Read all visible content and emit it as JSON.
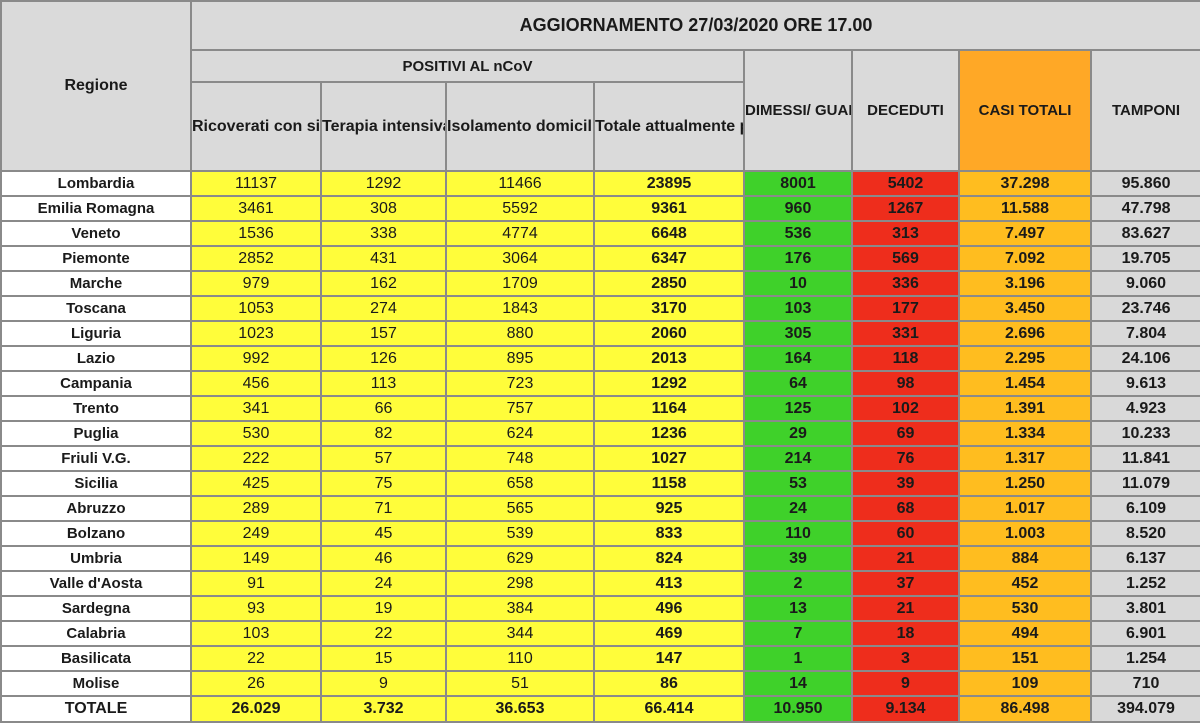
{
  "header": {
    "title": "AGGIORNAMENTO 27/03/2020 ORE 17.00",
    "regione": "Regione",
    "positivi_group": "POSITIVI AL nCoV",
    "ricoverati": "Ricoverati con sintomi",
    "terapia": "Terapia intensiva",
    "isolamento": "Isolamento domiciliare",
    "totale_positivi": "Totale attualmente positivi",
    "dimessi": "DIMESSI/ GUARITI",
    "deceduti": "DECEDUTI",
    "casi_totali": "CASI TOTALI",
    "tamponi": "TAMPONI"
  },
  "colors": {
    "yellow": "#fffd3a",
    "green": "#3fd12a",
    "red": "#ee2d1c",
    "orange": "#ffbd1f",
    "header_orange": "#ffa826",
    "grey": "#d9d9d9"
  },
  "rows": [
    {
      "regione": "Lombardia",
      "ricoverati": "11137",
      "terapia": "1292",
      "isolamento": "11466",
      "totale": "23895",
      "dimessi": "8001",
      "deceduti": "5402",
      "casi": "37.298",
      "tamponi": "95.860"
    },
    {
      "regione": "Emilia Romagna",
      "ricoverati": "3461",
      "terapia": "308",
      "isolamento": "5592",
      "totale": "9361",
      "dimessi": "960",
      "deceduti": "1267",
      "casi": "11.588",
      "tamponi": "47.798"
    },
    {
      "regione": "Veneto",
      "ricoverati": "1536",
      "terapia": "338",
      "isolamento": "4774",
      "totale": "6648",
      "dimessi": "536",
      "deceduti": "313",
      "casi": "7.497",
      "tamponi": "83.627"
    },
    {
      "regione": "Piemonte",
      "ricoverati": "2852",
      "terapia": "431",
      "isolamento": "3064",
      "totale": "6347",
      "dimessi": "176",
      "deceduti": "569",
      "casi": "7.092",
      "tamponi": "19.705"
    },
    {
      "regione": "Marche",
      "ricoverati": "979",
      "terapia": "162",
      "isolamento": "1709",
      "totale": "2850",
      "dimessi": "10",
      "deceduti": "336",
      "casi": "3.196",
      "tamponi": "9.060"
    },
    {
      "regione": "Toscana",
      "ricoverati": "1053",
      "terapia": "274",
      "isolamento": "1843",
      "totale": "3170",
      "dimessi": "103",
      "deceduti": "177",
      "casi": "3.450",
      "tamponi": "23.746"
    },
    {
      "regione": "Liguria",
      "ricoverati": "1023",
      "terapia": "157",
      "isolamento": "880",
      "totale": "2060",
      "dimessi": "305",
      "deceduti": "331",
      "casi": "2.696",
      "tamponi": "7.804"
    },
    {
      "regione": "Lazio",
      "ricoverati": "992",
      "terapia": "126",
      "isolamento": "895",
      "totale": "2013",
      "dimessi": "164",
      "deceduti": "118",
      "casi": "2.295",
      "tamponi": "24.106"
    },
    {
      "regione": "Campania",
      "ricoverati": "456",
      "terapia": "113",
      "isolamento": "723",
      "totale": "1292",
      "dimessi": "64",
      "deceduti": "98",
      "casi": "1.454",
      "tamponi": "9.613"
    },
    {
      "regione": "Trento",
      "ricoverati": "341",
      "terapia": "66",
      "isolamento": "757",
      "totale": "1164",
      "dimessi": "125",
      "deceduti": "102",
      "casi": "1.391",
      "tamponi": "4.923"
    },
    {
      "regione": "Puglia",
      "ricoverati": "530",
      "terapia": "82",
      "isolamento": "624",
      "totale": "1236",
      "dimessi": "29",
      "deceduti": "69",
      "casi": "1.334",
      "tamponi": "10.233"
    },
    {
      "regione": "Friuli V.G.",
      "ricoverati": "222",
      "terapia": "57",
      "isolamento": "748",
      "totale": "1027",
      "dimessi": "214",
      "deceduti": "76",
      "casi": "1.317",
      "tamponi": "11.841"
    },
    {
      "regione": "Sicilia",
      "ricoverati": "425",
      "terapia": "75",
      "isolamento": "658",
      "totale": "1158",
      "dimessi": "53",
      "deceduti": "39",
      "casi": "1.250",
      "tamponi": "11.079"
    },
    {
      "regione": "Abruzzo",
      "ricoverati": "289",
      "terapia": "71",
      "isolamento": "565",
      "totale": "925",
      "dimessi": "24",
      "deceduti": "68",
      "casi": "1.017",
      "tamponi": "6.109"
    },
    {
      "regione": "Bolzano",
      "ricoverati": "249",
      "terapia": "45",
      "isolamento": "539",
      "totale": "833",
      "dimessi": "110",
      "deceduti": "60",
      "casi": "1.003",
      "tamponi": "8.520"
    },
    {
      "regione": "Umbria",
      "ricoverati": "149",
      "terapia": "46",
      "isolamento": "629",
      "totale": "824",
      "dimessi": "39",
      "deceduti": "21",
      "casi": "884",
      "tamponi": "6.137"
    },
    {
      "regione": "Valle d'Aosta",
      "ricoverati": "91",
      "terapia": "24",
      "isolamento": "298",
      "totale": "413",
      "dimessi": "2",
      "deceduti": "37",
      "casi": "452",
      "tamponi": "1.252"
    },
    {
      "regione": "Sardegna",
      "ricoverati": "93",
      "terapia": "19",
      "isolamento": "384",
      "totale": "496",
      "dimessi": "13",
      "deceduti": "21",
      "casi": "530",
      "tamponi": "3.801"
    },
    {
      "regione": "Calabria",
      "ricoverati": "103",
      "terapia": "22",
      "isolamento": "344",
      "totale": "469",
      "dimessi": "7",
      "deceduti": "18",
      "casi": "494",
      "tamponi": "6.901"
    },
    {
      "regione": "Basilicata",
      "ricoverati": "22",
      "terapia": "15",
      "isolamento": "110",
      "totale": "147",
      "dimessi": "1",
      "deceduti": "3",
      "casi": "151",
      "tamponi": "1.254"
    },
    {
      "regione": "Molise",
      "ricoverati": "26",
      "terapia": "9",
      "isolamento": "51",
      "totale": "86",
      "dimessi": "14",
      "deceduti": "9",
      "casi": "109",
      "tamponi": "710"
    }
  ],
  "totale": {
    "regione": "TOTALE",
    "ricoverati": "26.029",
    "terapia": "3.732",
    "isolamento": "36.653",
    "totale": "66.414",
    "dimessi": "10.950",
    "deceduti": "9.134",
    "casi": "86.498",
    "tamponi": "394.079"
  }
}
